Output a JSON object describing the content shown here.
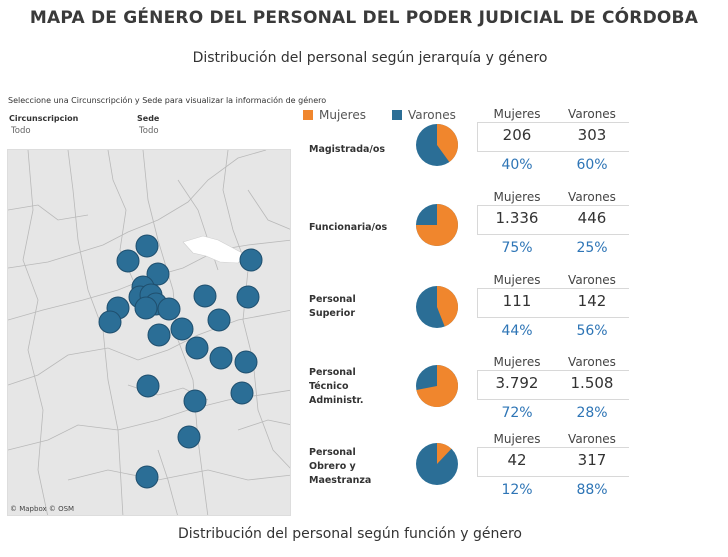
{
  "header": {
    "title": "MAPA DE GÉNERO DEL PERSONAL DEL PODER JUDICIAL DE CÓRDOBA",
    "subtitle_top": "Distribución del personal según jerarquía y género",
    "subtitle_bottom": "Distribución del personal según función y género"
  },
  "filters": {
    "hint": "Seleccione una Circunscripción y Sede para visualizar la información de género",
    "circunscripcion_label": "Circunscripcion",
    "circunscripcion_value": "Todo",
    "sede_label": "Sede",
    "sede_value": "Todo"
  },
  "map": {
    "credit": "© Mapbox © OSM",
    "marker_color": "#2b6e96"
  },
  "legend": {
    "women": "Mujeres",
    "men": "Varones",
    "women_color": "#f0862d",
    "men_color": "#2b6e96"
  },
  "table_headers": {
    "women": "Mujeres",
    "men": "Varones"
  },
  "categories": [
    {
      "label": "Magistrada/os",
      "women_count": "206",
      "men_count": "303",
      "women_pct": "40%",
      "men_pct": "60%",
      "women_frac": 0.4
    },
    {
      "label": "Funcionaria/os",
      "women_count": "1.336",
      "men_count": "446",
      "women_pct": "75%",
      "men_pct": "25%",
      "women_frac": 0.75
    },
    {
      "label": "Personal Superior",
      "label_lines": [
        "Personal",
        "Superior"
      ],
      "women_count": "111",
      "men_count": "142",
      "women_pct": "44%",
      "men_pct": "56%",
      "women_frac": 0.44
    },
    {
      "label": "Personal Técnico Administr.",
      "label_lines": [
        "Personal",
        "Técnico",
        "Administr."
      ],
      "women_count": "3.792",
      "men_count": "1.508",
      "women_pct": "72%",
      "men_pct": "28%",
      "women_frac": 0.72
    },
    {
      "label": "Personal Obrero y Maestranza",
      "label_lines": [
        "Personal",
        "Obrero y",
        "Maestranza"
      ],
      "women_count": "42",
      "men_count": "317",
      "women_pct": "12%",
      "men_pct": "88%",
      "women_frac": 0.12
    }
  ]
}
